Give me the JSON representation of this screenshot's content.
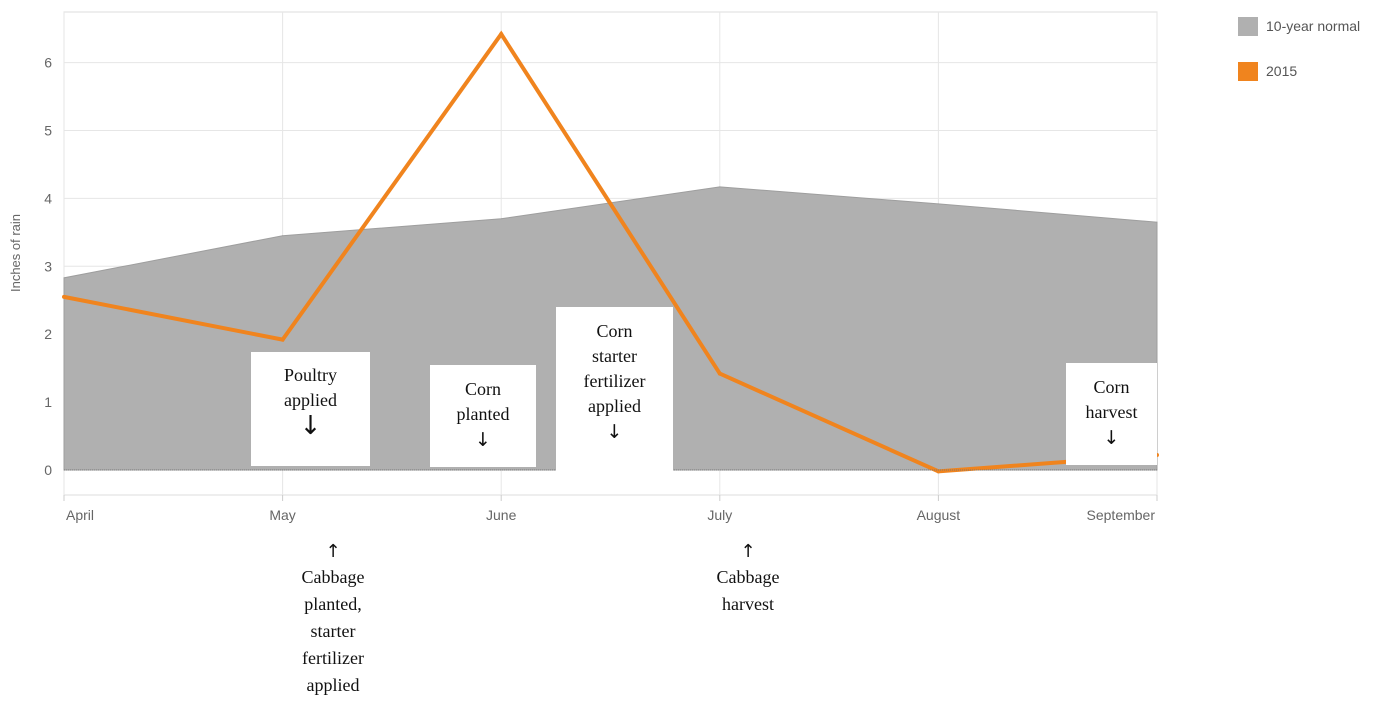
{
  "chart_data": {
    "type": "area",
    "ylabel": "Inches of rain",
    "xlabel": "",
    "categories": [
      "April",
      "May",
      "June",
      "July",
      "August",
      "September"
    ],
    "ylim": [
      -0.35,
      6.75
    ],
    "yticks": [
      0,
      1,
      2,
      3,
      4,
      5,
      6
    ],
    "grid": true,
    "legend_position": "top-right",
    "series": [
      {
        "name": "10-year normal",
        "kind": "area",
        "color": "#b0b0b0",
        "values": [
          2.83,
          3.45,
          3.7,
          4.17,
          3.92,
          3.65
        ]
      },
      {
        "name": "2015",
        "kind": "line",
        "color": "#f0841e",
        "values": [
          2.55,
          1.92,
          6.42,
          1.42,
          -0.02,
          0.22
        ]
      }
    ],
    "annotations": [
      {
        "id": "poultry",
        "lines": [
          "Poultry",
          "applied"
        ],
        "arrow": "↓"
      },
      {
        "id": "corn_planted",
        "lines": [
          "Corn",
          "planted"
        ],
        "arrow": "↓"
      },
      {
        "id": "corn_starter",
        "lines": [
          "Corn",
          "starter",
          "fertilizer",
          "applied"
        ],
        "arrow": "↓"
      },
      {
        "id": "corn_harvest",
        "lines": [
          "Corn",
          "harvest"
        ],
        "arrow": "↓"
      },
      {
        "id": "cabbage_planted",
        "lines": [
          "Cabbage",
          "planted,",
          "starter",
          "fertilizer",
          "applied"
        ],
        "arrow": "↑"
      },
      {
        "id": "cabbage_harvest",
        "lines": [
          "Cabbage",
          "harvest"
        ],
        "arrow": "↑"
      }
    ]
  }
}
